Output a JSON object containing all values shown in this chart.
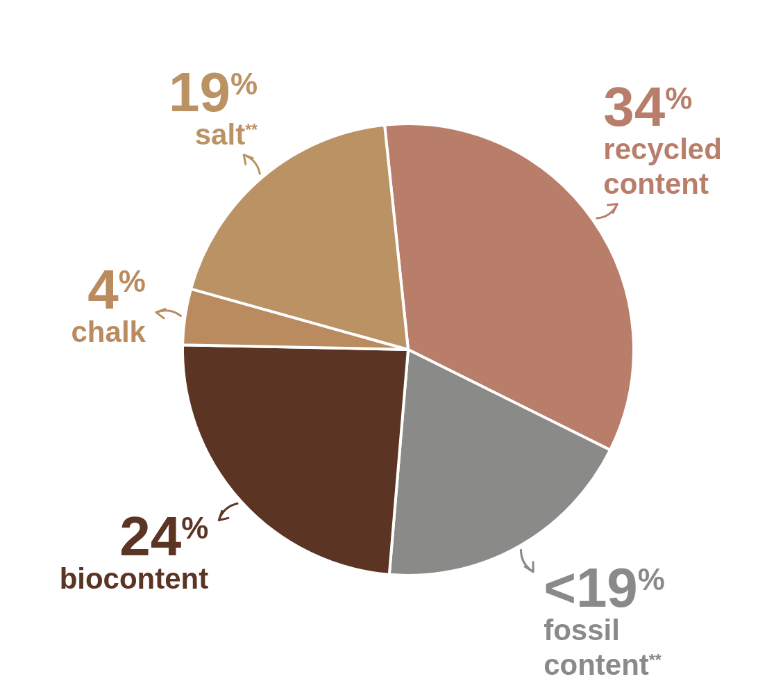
{
  "chart_data": {
    "type": "pie",
    "categories": [
      "recycled content",
      "fossil content$^{**}$",
      "biocontent",
      "chalk",
      "salt$^{**}$"
    ],
    "values": [
      34,
      19,
      24,
      4,
      19
    ],
    "value_labels": [
      "34$^{%}$",
      "<19$^{%}$",
      "24$^{%}$",
      "4$^{%}$",
      "19$^{%}$"
    ],
    "colors": [
      "#b97e6a",
      "#8a8a88",
      "#5b3423",
      "#b98b5e",
      "#bb9263"
    ]
  }
}
